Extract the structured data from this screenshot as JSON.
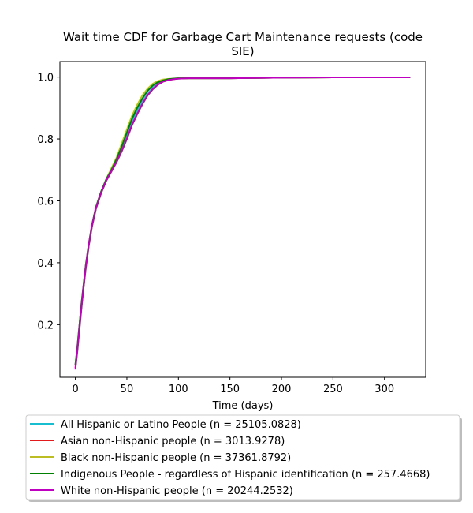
{
  "chart_data": {
    "type": "line",
    "title_line1": "Wait time CDF for Garbage Cart Maintenance  requests (code",
    "title_line2": "SIE)",
    "xlabel": "Time (days)",
    "ylabel": "",
    "xlim": [
      -15,
      340
    ],
    "ylim": [
      0.03,
      1.05
    ],
    "xticks": [
      0,
      50,
      100,
      150,
      200,
      250,
      300
    ],
    "yticks": [
      0.2,
      0.4,
      0.6,
      0.8,
      1.0
    ],
    "xtick_labels": [
      "0",
      "50",
      "100",
      "150",
      "200",
      "250",
      "300"
    ],
    "ytick_labels": [
      "0.2",
      "0.4",
      "0.6",
      "0.8",
      "1.0"
    ],
    "grid": false,
    "legend_position": "below",
    "series": [
      {
        "name": "All Hispanic or Latino People (n = 25105.0828)",
        "color": "#17becf",
        "x": [
          0,
          2,
          4,
          6,
          8,
          10,
          13,
          16,
          20,
          25,
          30,
          35,
          40,
          45,
          50,
          55,
          60,
          65,
          70,
          75,
          80,
          85,
          90,
          95,
          100,
          110,
          120,
          150,
          200,
          250,
          300,
          325
        ],
        "y": [
          0.07,
          0.13,
          0.2,
          0.27,
          0.33,
          0.39,
          0.46,
          0.52,
          0.58,
          0.63,
          0.67,
          0.7,
          0.73,
          0.77,
          0.81,
          0.855,
          0.89,
          0.92,
          0.945,
          0.965,
          0.978,
          0.986,
          0.991,
          0.994,
          0.995,
          0.996,
          0.996,
          0.996,
          0.998,
          0.999,
          0.999,
          0.999
        ]
      },
      {
        "name": "Asian non-Hispanic people (n = 3013.9278)",
        "color": "#e31a1c",
        "x": [
          0,
          2,
          4,
          6,
          8,
          10,
          13,
          16,
          20,
          25,
          30,
          35,
          40,
          45,
          50,
          55,
          60,
          65,
          70,
          75,
          80,
          85,
          90,
          95,
          100,
          110,
          120,
          150,
          200,
          250,
          300,
          325
        ],
        "y": [
          0.06,
          0.12,
          0.19,
          0.26,
          0.32,
          0.38,
          0.455,
          0.515,
          0.575,
          0.625,
          0.665,
          0.695,
          0.725,
          0.76,
          0.8,
          0.845,
          0.88,
          0.912,
          0.94,
          0.96,
          0.975,
          0.985,
          0.99,
          0.993,
          0.995,
          0.996,
          0.996,
          0.996,
          0.998,
          0.999,
          0.999,
          0.999
        ]
      },
      {
        "name": "Black non-Hispanic people (n = 37361.8792)",
        "color": "#bcbd22",
        "x": [
          0,
          2,
          4,
          6,
          8,
          10,
          13,
          16,
          20,
          25,
          30,
          35,
          40,
          45,
          50,
          55,
          60,
          65,
          70,
          75,
          80,
          85,
          90,
          95,
          100,
          110,
          120,
          150,
          200,
          250,
          300,
          325
        ],
        "y": [
          0.07,
          0.13,
          0.2,
          0.27,
          0.33,
          0.39,
          0.46,
          0.52,
          0.58,
          0.63,
          0.67,
          0.705,
          0.74,
          0.785,
          0.83,
          0.875,
          0.91,
          0.94,
          0.962,
          0.978,
          0.987,
          0.992,
          0.994,
          0.995,
          0.996,
          0.996,
          0.996,
          0.996,
          0.998,
          0.999,
          0.999,
          0.999
        ]
      },
      {
        "name": "Indigenous People - regardless of Hispanic identification (n = 257.4668)",
        "color": "#008000",
        "x": [
          0,
          2,
          4,
          6,
          8,
          10,
          13,
          16,
          20,
          25,
          30,
          35,
          40,
          45,
          50,
          55,
          60,
          65,
          70,
          75,
          80,
          85,
          90,
          95,
          100,
          110,
          120,
          150,
          200,
          250,
          300,
          325
        ],
        "y": [
          0.07,
          0.13,
          0.2,
          0.27,
          0.33,
          0.39,
          0.46,
          0.52,
          0.58,
          0.63,
          0.67,
          0.7,
          0.735,
          0.775,
          0.82,
          0.865,
          0.9,
          0.93,
          0.955,
          0.972,
          0.983,
          0.989,
          0.993,
          0.995,
          0.996,
          0.996,
          0.996,
          0.996,
          0.998,
          0.999,
          0.999,
          0.999
        ]
      },
      {
        "name": "White non-Hispanic people (n = 20244.2532)",
        "color": "#c000c0",
        "x": [
          0,
          2,
          4,
          6,
          8,
          10,
          13,
          16,
          20,
          25,
          30,
          35,
          40,
          45,
          50,
          55,
          60,
          65,
          70,
          75,
          80,
          85,
          90,
          95,
          100,
          110,
          120,
          150,
          200,
          250,
          300,
          325
        ],
        "y": [
          0.055,
          0.115,
          0.185,
          0.255,
          0.32,
          0.38,
          0.455,
          0.515,
          0.575,
          0.625,
          0.665,
          0.695,
          0.725,
          0.76,
          0.8,
          0.845,
          0.88,
          0.912,
          0.94,
          0.96,
          0.975,
          0.985,
          0.99,
          0.993,
          0.995,
          0.996,
          0.996,
          0.996,
          0.998,
          0.999,
          0.999,
          0.999
        ]
      }
    ]
  }
}
